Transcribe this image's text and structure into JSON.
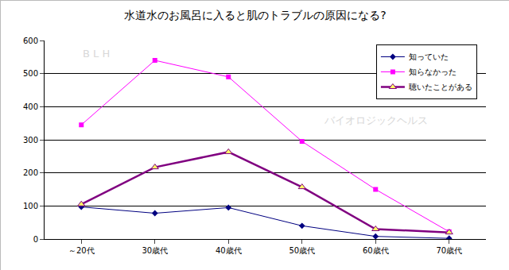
{
  "chart_data": {
    "type": "line",
    "title": "水道水のお風呂に入ると肌のトラブルの原因になる?",
    "categories": [
      "～20代",
      "30歳代",
      "40歳代",
      "50歳代",
      "60歳代",
      "70歳代"
    ],
    "series": [
      {
        "name": "知っていた",
        "color": "#000080",
        "marker": "diamond",
        "values": [
          97,
          78,
          95,
          40,
          8,
          2
        ]
      },
      {
        "name": "知らなかった",
        "color": "#ff00ff",
        "marker": "square",
        "values": [
          345,
          540,
          490,
          295,
          150,
          22
        ]
      },
      {
        "name": "聴いたことがある",
        "color": "#800080",
        "marker": "triangle",
        "values": [
          105,
          217,
          263,
          157,
          30,
          20
        ]
      }
    ],
    "ylim": [
      0,
      600
    ],
    "yticks": [
      0,
      100,
      200,
      300,
      400,
      500,
      600
    ],
    "grid": true,
    "legend": "top-right",
    "annotations": [
      "B L H",
      "バイオロジックヘルス"
    ]
  }
}
